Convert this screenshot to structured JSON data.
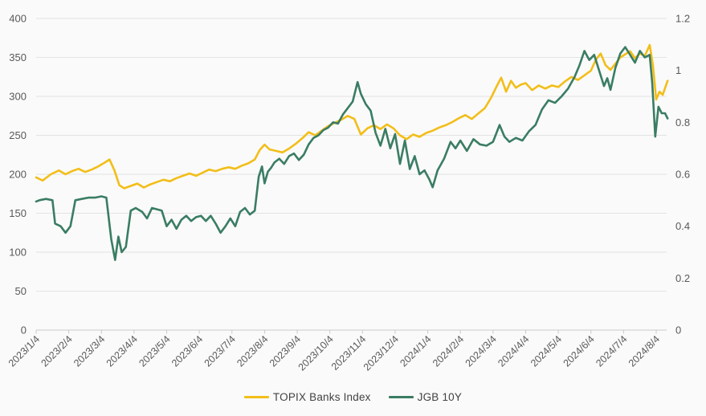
{
  "chart_data": {
    "type": "line",
    "grid": true,
    "legend_position": "bottom",
    "colors": {
      "background": "#fafafa",
      "grid": "#e3e3e3",
      "axis": "#c9c9c9",
      "text": "#595959"
    },
    "x_domain": [
      0,
      19.35
    ],
    "x_tick_labels": [
      "2023/1/4",
      "2023/2/4",
      "2023/3/4",
      "2023/4/4",
      "2023/5/4",
      "2023/6/4",
      "2023/7/4",
      "2023/8/4",
      "2023/9/4",
      "2023/10/4",
      "2023/11/4",
      "2023/12/4",
      "2024/1/4",
      "2024/2/4",
      "2024/3/4",
      "2024/4/4",
      "2024/5/4",
      "2024/6/4",
      "2024/7/4",
      "2024/8/4"
    ],
    "left_axis": {
      "min": 0,
      "max": 400,
      "step": 50,
      "tick_labels": [
        "0",
        "50",
        "100",
        "150",
        "200",
        "250",
        "300",
        "350",
        "400"
      ]
    },
    "right_axis": {
      "min": 0,
      "max": 1.2,
      "step": 0.2,
      "tick_labels": [
        "0",
        "0.2",
        "0.4",
        "0.6",
        "0.8",
        "1",
        "1.2"
      ]
    },
    "series": [
      {
        "name": "TOPIX Banks Index",
        "axis": "left",
        "color": "#f2be19",
        "points": [
          [
            0,
            196
          ],
          [
            0.2,
            192
          ],
          [
            0.45,
            200
          ],
          [
            0.7,
            205
          ],
          [
            0.9,
            200
          ],
          [
            1.1,
            204
          ],
          [
            1.3,
            207
          ],
          [
            1.5,
            203
          ],
          [
            1.7,
            206
          ],
          [
            1.9,
            210
          ],
          [
            2.1,
            215
          ],
          [
            2.25,
            219
          ],
          [
            2.4,
            205
          ],
          [
            2.55,
            186
          ],
          [
            2.7,
            182
          ],
          [
            2.9,
            185
          ],
          [
            3.1,
            188
          ],
          [
            3.3,
            183
          ],
          [
            3.5,
            187
          ],
          [
            3.7,
            190
          ],
          [
            3.9,
            193
          ],
          [
            4.1,
            191
          ],
          [
            4.3,
            195
          ],
          [
            4.5,
            198
          ],
          [
            4.7,
            201
          ],
          [
            4.9,
            198
          ],
          [
            5.1,
            202
          ],
          [
            5.3,
            206
          ],
          [
            5.5,
            204
          ],
          [
            5.7,
            207
          ],
          [
            5.9,
            209
          ],
          [
            6.1,
            207
          ],
          [
            6.3,
            211
          ],
          [
            6.5,
            214
          ],
          [
            6.7,
            219
          ],
          [
            6.85,
            231
          ],
          [
            7,
            238
          ],
          [
            7.15,
            232
          ],
          [
            7.35,
            230
          ],
          [
            7.55,
            228
          ],
          [
            7.75,
            233
          ],
          [
            7.95,
            239
          ],
          [
            8.15,
            246
          ],
          [
            8.35,
            254
          ],
          [
            8.55,
            250
          ],
          [
            8.75,
            256
          ],
          [
            8.95,
            262
          ],
          [
            9.15,
            266
          ],
          [
            9.35,
            270
          ],
          [
            9.55,
            275
          ],
          [
            9.75,
            271
          ],
          [
            9.95,
            251
          ],
          [
            10.15,
            259
          ],
          [
            10.35,
            263
          ],
          [
            10.55,
            258
          ],
          [
            10.75,
            264
          ],
          [
            10.95,
            259
          ],
          [
            11.15,
            250
          ],
          [
            11.35,
            245
          ],
          [
            11.55,
            251
          ],
          [
            11.75,
            248
          ],
          [
            11.95,
            253
          ],
          [
            12.15,
            256
          ],
          [
            12.35,
            260
          ],
          [
            12.55,
            263
          ],
          [
            12.75,
            267
          ],
          [
            12.95,
            272
          ],
          [
            13.15,
            276
          ],
          [
            13.35,
            271
          ],
          [
            13.55,
            278
          ],
          [
            13.75,
            285
          ],
          [
            13.95,
            299
          ],
          [
            14.1,
            312
          ],
          [
            14.25,
            324
          ],
          [
            14.4,
            306
          ],
          [
            14.55,
            320
          ],
          [
            14.7,
            311
          ],
          [
            14.85,
            315
          ],
          [
            15,
            317
          ],
          [
            15.2,
            308
          ],
          [
            15.4,
            314
          ],
          [
            15.6,
            310
          ],
          [
            15.8,
            314
          ],
          [
            16,
            312
          ],
          [
            16.2,
            319
          ],
          [
            16.4,
            325
          ],
          [
            16.6,
            321
          ],
          [
            16.8,
            327
          ],
          [
            17,
            333
          ],
          [
            17.15,
            347
          ],
          [
            17.3,
            355
          ],
          [
            17.45,
            340
          ],
          [
            17.6,
            334
          ],
          [
            17.75,
            342
          ],
          [
            17.9,
            350
          ],
          [
            18.05,
            354
          ],
          [
            18.2,
            358
          ],
          [
            18.35,
            349
          ],
          [
            18.5,
            355
          ],
          [
            18.65,
            352
          ],
          [
            18.8,
            366
          ],
          [
            18.9,
            340
          ],
          [
            19,
            296
          ],
          [
            19.1,
            306
          ],
          [
            19.2,
            302
          ],
          [
            19.35,
            320
          ]
        ]
      },
      {
        "name": "JGB 10Y",
        "axis": "right",
        "color": "#3a7d63",
        "points": [
          [
            0,
            0.495
          ],
          [
            0.1,
            0.5
          ],
          [
            0.3,
            0.505
          ],
          [
            0.5,
            0.5
          ],
          [
            0.58,
            0.41
          ],
          [
            0.75,
            0.4
          ],
          [
            0.9,
            0.375
          ],
          [
            1.05,
            0.4
          ],
          [
            1.2,
            0.5
          ],
          [
            1.4,
            0.505
          ],
          [
            1.6,
            0.51
          ],
          [
            1.8,
            0.51
          ],
          [
            2,
            0.515
          ],
          [
            2.15,
            0.51
          ],
          [
            2.3,
            0.35
          ],
          [
            2.42,
            0.27
          ],
          [
            2.52,
            0.36
          ],
          [
            2.62,
            0.3
          ],
          [
            2.75,
            0.32
          ],
          [
            2.9,
            0.46
          ],
          [
            3.05,
            0.47
          ],
          [
            3.25,
            0.455
          ],
          [
            3.4,
            0.43
          ],
          [
            3.55,
            0.47
          ],
          [
            3.7,
            0.465
          ],
          [
            3.85,
            0.46
          ],
          [
            4,
            0.4
          ],
          [
            4.15,
            0.425
          ],
          [
            4.3,
            0.39
          ],
          [
            4.45,
            0.425
          ],
          [
            4.6,
            0.44
          ],
          [
            4.75,
            0.42
          ],
          [
            4.9,
            0.435
          ],
          [
            5.05,
            0.44
          ],
          [
            5.2,
            0.42
          ],
          [
            5.35,
            0.44
          ],
          [
            5.5,
            0.41
          ],
          [
            5.65,
            0.375
          ],
          [
            5.8,
            0.4
          ],
          [
            5.95,
            0.43
          ],
          [
            6.1,
            0.4
          ],
          [
            6.25,
            0.455
          ],
          [
            6.4,
            0.47
          ],
          [
            6.55,
            0.445
          ],
          [
            6.7,
            0.46
          ],
          [
            6.82,
            0.59
          ],
          [
            6.92,
            0.63
          ],
          [
            7,
            0.565
          ],
          [
            7.1,
            0.61
          ],
          [
            7.2,
            0.625
          ],
          [
            7.3,
            0.645
          ],
          [
            7.45,
            0.66
          ],
          [
            7.6,
            0.64
          ],
          [
            7.75,
            0.67
          ],
          [
            7.9,
            0.68
          ],
          [
            8.05,
            0.655
          ],
          [
            8.2,
            0.675
          ],
          [
            8.35,
            0.715
          ],
          [
            8.5,
            0.74
          ],
          [
            8.65,
            0.75
          ],
          [
            8.8,
            0.77
          ],
          [
            8.95,
            0.78
          ],
          [
            9.1,
            0.8
          ],
          [
            9.25,
            0.795
          ],
          [
            9.4,
            0.83
          ],
          [
            9.55,
            0.855
          ],
          [
            9.7,
            0.88
          ],
          [
            9.85,
            0.955
          ],
          [
            9.95,
            0.91
          ],
          [
            10.1,
            0.87
          ],
          [
            10.25,
            0.845
          ],
          [
            10.4,
            0.76
          ],
          [
            10.55,
            0.71
          ],
          [
            10.7,
            0.775
          ],
          [
            10.85,
            0.7
          ],
          [
            11,
            0.755
          ],
          [
            11.15,
            0.64
          ],
          [
            11.3,
            0.73
          ],
          [
            11.45,
            0.62
          ],
          [
            11.6,
            0.67
          ],
          [
            11.75,
            0.6
          ],
          [
            11.9,
            0.615
          ],
          [
            12.05,
            0.58
          ],
          [
            12.15,
            0.55
          ],
          [
            12.3,
            0.615
          ],
          [
            12.5,
            0.66
          ],
          [
            12.7,
            0.725
          ],
          [
            12.85,
            0.7
          ],
          [
            13,
            0.73
          ],
          [
            13.2,
            0.69
          ],
          [
            13.4,
            0.735
          ],
          [
            13.6,
            0.715
          ],
          [
            13.8,
            0.71
          ],
          [
            14,
            0.725
          ],
          [
            14.2,
            0.79
          ],
          [
            14.35,
            0.745
          ],
          [
            14.5,
            0.725
          ],
          [
            14.7,
            0.74
          ],
          [
            14.9,
            0.73
          ],
          [
            15.1,
            0.765
          ],
          [
            15.3,
            0.79
          ],
          [
            15.5,
            0.85
          ],
          [
            15.7,
            0.885
          ],
          [
            15.9,
            0.875
          ],
          [
            16.1,
            0.9
          ],
          [
            16.3,
            0.93
          ],
          [
            16.5,
            0.975
          ],
          [
            16.65,
            1.02
          ],
          [
            16.8,
            1.075
          ],
          [
            16.95,
            1.04
          ],
          [
            17.1,
            1.06
          ],
          [
            17.25,
            1
          ],
          [
            17.4,
            0.94
          ],
          [
            17.5,
            0.97
          ],
          [
            17.6,
            0.925
          ],
          [
            17.75,
            1.01
          ],
          [
            17.9,
            1.065
          ],
          [
            18.05,
            1.09
          ],
          [
            18.2,
            1.06
          ],
          [
            18.35,
            1.03
          ],
          [
            18.5,
            1.075
          ],
          [
            18.65,
            1.05
          ],
          [
            18.8,
            1.06
          ],
          [
            18.88,
            0.95
          ],
          [
            18.97,
            0.745
          ],
          [
            19.07,
            0.86
          ],
          [
            19.17,
            0.835
          ],
          [
            19.27,
            0.835
          ],
          [
            19.35,
            0.815
          ]
        ]
      }
    ]
  },
  "legend": {
    "items": [
      {
        "label": "TOPIX Banks Index",
        "color": "#f2be19"
      },
      {
        "label": "JGB 10Y",
        "color": "#3a7d63"
      }
    ]
  }
}
